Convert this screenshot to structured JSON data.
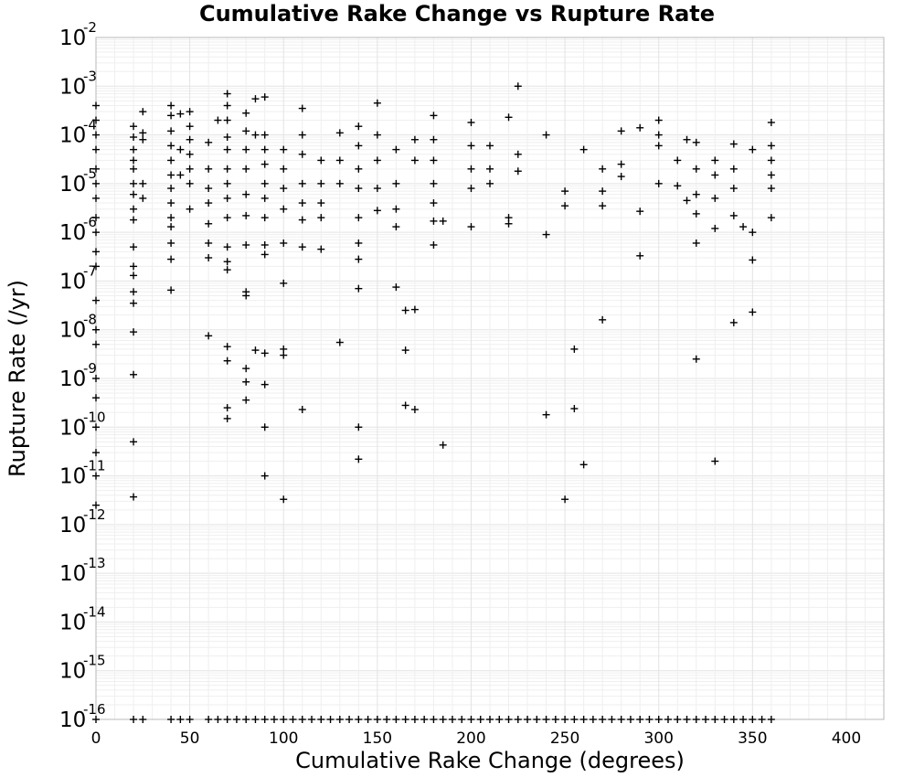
{
  "chart_data": {
    "type": "scatter",
    "title": "Cumulative Rake Change vs Rupture Rate",
    "xlabel": "Cumulative Rake Change (degrees)",
    "ylabel": "Rupture Rate (/yr)",
    "xlim": [
      0,
      420
    ],
    "ylim": [
      1e-16,
      0.01
    ],
    "y_scale": "log",
    "grid": true,
    "marker": "plus",
    "x_ticks": [
      "0",
      "50",
      "100",
      "150",
      "200",
      "250",
      "300",
      "350",
      "400"
    ],
    "y_ticks": [
      {
        "base": "10",
        "exp": "-16"
      },
      {
        "base": "10",
        "exp": "-15"
      },
      {
        "base": "10",
        "exp": "-14"
      },
      {
        "base": "10",
        "exp": "-13"
      },
      {
        "base": "10",
        "exp": "-12"
      },
      {
        "base": "10",
        "exp": "-11"
      },
      {
        "base": "10",
        "exp": "-10"
      },
      {
        "base": "10",
        "exp": "-9"
      },
      {
        "base": "10",
        "exp": "-8"
      },
      {
        "base": "10",
        "exp": "-7"
      },
      {
        "base": "10",
        "exp": "-6"
      },
      {
        "base": "10",
        "exp": "-5"
      },
      {
        "base": "10",
        "exp": "-4"
      },
      {
        "base": "10",
        "exp": "-3"
      },
      {
        "base": "10",
        "exp": "-2"
      }
    ],
    "points": [
      [
        0,
        0.0004
      ],
      [
        0,
        0.0002
      ],
      [
        0,
        0.0001
      ],
      [
        0,
        5e-05
      ],
      [
        0,
        2e-05
      ],
      [
        0,
        1e-05
      ],
      [
        0,
        5e-06
      ],
      [
        0,
        2e-06
      ],
      [
        0,
        1e-06
      ],
      [
        0,
        4e-07
      ],
      [
        0,
        2e-07
      ],
      [
        0,
        4e-08
      ],
      [
        0,
        1e-08
      ],
      [
        0,
        5e-09
      ],
      [
        0,
        1e-09
      ],
      [
        0,
        4e-10
      ],
      [
        0,
        1e-10
      ],
      [
        0,
        3e-11
      ],
      [
        0,
        1e-11
      ],
      [
        0,
        2.5e-12
      ],
      [
        20,
        0.00015
      ],
      [
        20,
        9e-05
      ],
      [
        20,
        5e-05
      ],
      [
        20,
        3e-05
      ],
      [
        20,
        2e-05
      ],
      [
        20,
        1e-05
      ],
      [
        20,
        6e-06
      ],
      [
        20,
        3e-06
      ],
      [
        20,
        1.8e-06
      ],
      [
        20,
        5e-07
      ],
      [
        20,
        2e-07
      ],
      [
        20,
        1.3e-07
      ],
      [
        20,
        6e-08
      ],
      [
        20,
        3.5e-08
      ],
      [
        20,
        9e-09
      ],
      [
        20,
        1.2e-09
      ],
      [
        20,
        5e-11
      ],
      [
        20,
        3.7e-12
      ],
      [
        25,
        0.0003
      ],
      [
        25,
        0.00011
      ],
      [
        25,
        8e-05
      ],
      [
        25,
        1e-05
      ],
      [
        25,
        5e-06
      ],
      [
        40,
        0.0004
      ],
      [
        40,
        0.00025
      ],
      [
        40,
        0.00012
      ],
      [
        40,
        6e-05
      ],
      [
        40,
        3e-05
      ],
      [
        40,
        1.5e-05
      ],
      [
        40,
        8e-06
      ],
      [
        40,
        4e-06
      ],
      [
        40,
        2e-06
      ],
      [
        40,
        1.3e-06
      ],
      [
        40,
        6e-07
      ],
      [
        40,
        2.8e-07
      ],
      [
        40,
        6.5e-08
      ],
      [
        45,
        0.00027
      ],
      [
        45,
        5e-05
      ],
      [
        45,
        1.5e-05
      ],
      [
        50,
        0.0003
      ],
      [
        50,
        0.00015
      ],
      [
        50,
        8e-05
      ],
      [
        50,
        4e-05
      ],
      [
        50,
        2e-05
      ],
      [
        50,
        1e-05
      ],
      [
        50,
        3e-06
      ],
      [
        60,
        7e-05
      ],
      [
        60,
        2e-05
      ],
      [
        60,
        8e-06
      ],
      [
        60,
        4e-06
      ],
      [
        60,
        1.5e-06
      ],
      [
        60,
        6e-07
      ],
      [
        60,
        3e-07
      ],
      [
        60,
        7.5e-09
      ],
      [
        65,
        0.0002
      ],
      [
        70,
        0.0007
      ],
      [
        70,
        0.0004
      ],
      [
        70,
        0.0002
      ],
      [
        70,
        9e-05
      ],
      [
        70,
        5e-05
      ],
      [
        70,
        2e-05
      ],
      [
        70,
        1e-05
      ],
      [
        70,
        5e-06
      ],
      [
        70,
        2e-06
      ],
      [
        70,
        5e-07
      ],
      [
        70,
        2.5e-07
      ],
      [
        70,
        1.7e-07
      ],
      [
        70,
        4.5e-09
      ],
      [
        70,
        2.3e-09
      ],
      [
        70,
        2.5e-10
      ],
      [
        70,
        1.5e-10
      ],
      [
        80,
        0.00028
      ],
      [
        80,
        0.00012
      ],
      [
        80,
        5e-05
      ],
      [
        80,
        2e-05
      ],
      [
        80,
        6e-06
      ],
      [
        80,
        2.2e-06
      ],
      [
        80,
        5.5e-07
      ],
      [
        80,
        6e-08
      ],
      [
        80,
        5e-08
      ],
      [
        80,
        1.6e-09
      ],
      [
        80,
        8.5e-10
      ],
      [
        80,
        3.6e-10
      ],
      [
        85,
        0.00055
      ],
      [
        85,
        0.0001
      ],
      [
        85,
        3.8e-09
      ],
      [
        90,
        0.0006
      ],
      [
        90,
        0.0001
      ],
      [
        90,
        5e-05
      ],
      [
        90,
        2.5e-05
      ],
      [
        90,
        1e-05
      ],
      [
        90,
        5e-06
      ],
      [
        90,
        2e-06
      ],
      [
        90,
        5.5e-07
      ],
      [
        90,
        3.5e-07
      ],
      [
        90,
        3.3e-09
      ],
      [
        90,
        7.5e-10
      ],
      [
        90,
        1e-10
      ],
      [
        90,
        1e-11
      ],
      [
        100,
        5e-05
      ],
      [
        100,
        2e-05
      ],
      [
        100,
        8e-06
      ],
      [
        100,
        3e-06
      ],
      [
        100,
        6e-07
      ],
      [
        100,
        9e-08
      ],
      [
        100,
        4e-09
      ],
      [
        100,
        3e-09
      ],
      [
        100,
        3.3e-12
      ],
      [
        110,
        0.00035
      ],
      [
        110,
        0.0001
      ],
      [
        110,
        4e-05
      ],
      [
        110,
        1e-05
      ],
      [
        110,
        4e-06
      ],
      [
        110,
        1.8e-06
      ],
      [
        110,
        5e-07
      ],
      [
        110,
        2.3e-10
      ],
      [
        120,
        3e-05
      ],
      [
        120,
        1e-05
      ],
      [
        120,
        4e-06
      ],
      [
        120,
        2e-06
      ],
      [
        120,
        4.5e-07
      ],
      [
        130,
        0.00011
      ],
      [
        130,
        3e-05
      ],
      [
        130,
        1e-05
      ],
      [
        130,
        5.5e-09
      ],
      [
        140,
        0.00015
      ],
      [
        140,
        6e-05
      ],
      [
        140,
        2e-05
      ],
      [
        140,
        8e-06
      ],
      [
        140,
        2e-06
      ],
      [
        140,
        6e-07
      ],
      [
        140,
        2.8e-07
      ],
      [
        140,
        7e-08
      ],
      [
        140,
        1e-10
      ],
      [
        140,
        2.2e-11
      ],
      [
        150,
        0.00045
      ],
      [
        150,
        0.0001
      ],
      [
        150,
        3e-05
      ],
      [
        150,
        8e-06
      ],
      [
        150,
        2.8e-06
      ],
      [
        160,
        5e-05
      ],
      [
        160,
        1e-05
      ],
      [
        160,
        3e-06
      ],
      [
        160,
        1.3e-06
      ],
      [
        160,
        7.5e-08
      ],
      [
        165,
        2.5e-08
      ],
      [
        165,
        3.8e-09
      ],
      [
        165,
        2.8e-10
      ],
      [
        170,
        8e-05
      ],
      [
        170,
        3e-05
      ],
      [
        170,
        2.6e-08
      ],
      [
        170,
        2.3e-10
      ],
      [
        180,
        0.00025
      ],
      [
        180,
        8e-05
      ],
      [
        180,
        3e-05
      ],
      [
        180,
        1e-05
      ],
      [
        180,
        4e-06
      ],
      [
        180,
        1.7e-06
      ],
      [
        180,
        5.5e-07
      ],
      [
        185,
        1.7e-06
      ],
      [
        185,
        4.3e-11
      ],
      [
        200,
        0.00018
      ],
      [
        200,
        6e-05
      ],
      [
        200,
        2e-05
      ],
      [
        200,
        8e-06
      ],
      [
        200,
        1.3e-06
      ],
      [
        210,
        6e-05
      ],
      [
        210,
        2e-05
      ],
      [
        210,
        1e-05
      ],
      [
        220,
        0.00023
      ],
      [
        220,
        2e-06
      ],
      [
        220,
        1.5e-06
      ],
      [
        225,
        0.001
      ],
      [
        225,
        4e-05
      ],
      [
        225,
        1.8e-05
      ],
      [
        240,
        0.0001
      ],
      [
        240,
        9e-07
      ],
      [
        240,
        1.8e-10
      ],
      [
        250,
        7e-06
      ],
      [
        250,
        3.5e-06
      ],
      [
        250,
        3.3e-12
      ],
      [
        255,
        4e-09
      ],
      [
        255,
        2.4e-10
      ],
      [
        260,
        5e-05
      ],
      [
        260,
        1.7e-11
      ],
      [
        270,
        2e-05
      ],
      [
        270,
        7e-06
      ],
      [
        270,
        3.5e-06
      ],
      [
        270,
        1.6e-08
      ],
      [
        280,
        0.00012
      ],
      [
        280,
        2.5e-05
      ],
      [
        280,
        1.4e-05
      ],
      [
        290,
        0.00014
      ],
      [
        290,
        2.7e-06
      ],
      [
        290,
        3.3e-07
      ],
      [
        300,
        0.0002
      ],
      [
        300,
        0.0001
      ],
      [
        300,
        6e-05
      ],
      [
        300,
        1e-05
      ],
      [
        310,
        3e-05
      ],
      [
        310,
        9e-06
      ],
      [
        315,
        8e-05
      ],
      [
        315,
        4.5e-06
      ],
      [
        320,
        7e-05
      ],
      [
        320,
        2e-05
      ],
      [
        320,
        6e-06
      ],
      [
        320,
        2.4e-06
      ],
      [
        320,
        6e-07
      ],
      [
        320,
        2.5e-09
      ],
      [
        330,
        3e-05
      ],
      [
        330,
        1.5e-05
      ],
      [
        330,
        5e-06
      ],
      [
        330,
        1.2e-06
      ],
      [
        330,
        2e-11
      ],
      [
        340,
        6.5e-05
      ],
      [
        340,
        2e-05
      ],
      [
        340,
        8e-06
      ],
      [
        340,
        2.2e-06
      ],
      [
        340,
        1.4e-08
      ],
      [
        345,
        1.3e-06
      ],
      [
        350,
        5e-05
      ],
      [
        350,
        1e-06
      ],
      [
        350,
        2.7e-07
      ],
      [
        350,
        2.3e-08
      ],
      [
        360,
        0.00018
      ],
      [
        360,
        6e-05
      ],
      [
        360,
        3e-05
      ],
      [
        360,
        1.5e-05
      ],
      [
        360,
        8e-06
      ],
      [
        360,
        2e-06
      ]
    ],
    "floor_x": [
      0,
      20,
      25,
      40,
      45,
      50,
      60,
      65,
      70,
      75,
      80,
      85,
      90,
      95,
      100,
      105,
      110,
      115,
      120,
      125,
      130,
      135,
      140,
      145,
      150,
      155,
      160,
      165,
      170,
      175,
      180,
      185,
      190,
      195,
      200,
      205,
      210,
      215,
      220,
      225,
      230,
      235,
      240,
      245,
      250,
      255,
      260,
      265,
      270,
      275,
      280,
      285,
      290,
      295,
      300,
      305,
      310,
      315,
      320,
      325,
      330,
      335,
      340,
      345,
      350,
      355,
      360
    ],
    "floor_y": 1e-16
  }
}
